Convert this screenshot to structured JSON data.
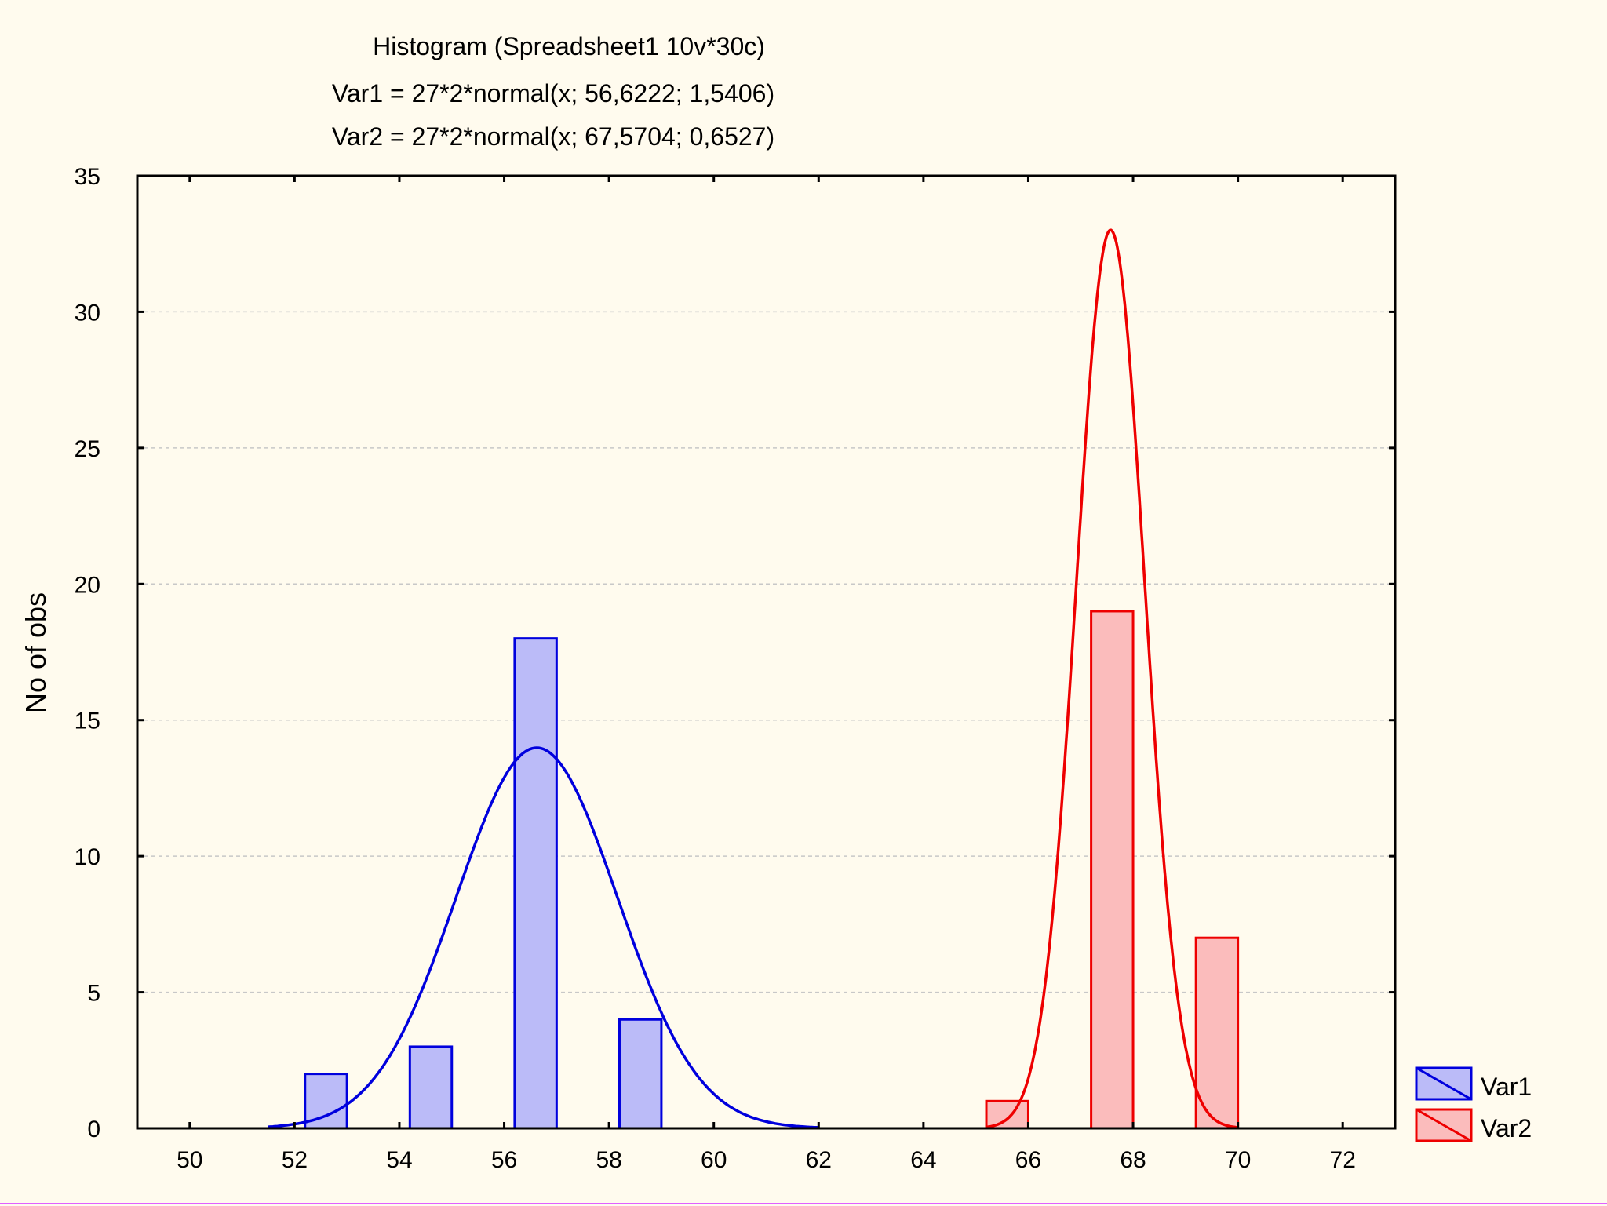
{
  "chart_data": {
    "type": "bar",
    "title": "Histogram (Spreadsheet1 10v*30c)",
    "subtitles": [
      "Var1 = 27*2*normal(x; 56,6222; 1,5406)",
      "Var2 = 27*2*normal(x; 67,5704; 0,6527)"
    ],
    "xlabel": "",
    "ylabel": "No of obs",
    "xlim": [
      49,
      73
    ],
    "ylim": [
      0,
      35
    ],
    "x_ticks": [
      50,
      52,
      54,
      56,
      58,
      60,
      62,
      64,
      66,
      68,
      70,
      72
    ],
    "y_ticks": [
      0,
      5,
      10,
      15,
      20,
      25,
      30,
      35
    ],
    "grid": true,
    "legend_position": "bottom-right",
    "series": [
      {
        "name": "Var1",
        "color": "#0000dd",
        "fill": "#bbbbf8",
        "bins": [
          {
            "from": 52.2,
            "to": 53.0,
            "count": 2
          },
          {
            "from": 54.2,
            "to": 55.0,
            "count": 3
          },
          {
            "from": 56.2,
            "to": 57.0,
            "count": 18
          },
          {
            "from": 58.2,
            "to": 59.0,
            "count": 4
          }
        ],
        "curve": {
          "n": 27,
          "width": 2,
          "mean": 56.6222,
          "sd": 1.5406,
          "from": 51.5,
          "to": 62.0
        }
      },
      {
        "name": "Var2",
        "color": "#ee0000",
        "fill": "#fbbcbc",
        "bins": [
          {
            "from": 65.2,
            "to": 66.0,
            "count": 1
          },
          {
            "from": 67.2,
            "to": 68.0,
            "count": 19
          },
          {
            "from": 69.2,
            "to": 70.0,
            "count": 7
          }
        ],
        "curve": {
          "n": 27,
          "width": 2,
          "mean": 67.5704,
          "sd": 0.6527,
          "from": 65.2,
          "to": 70.0
        }
      }
    ]
  }
}
